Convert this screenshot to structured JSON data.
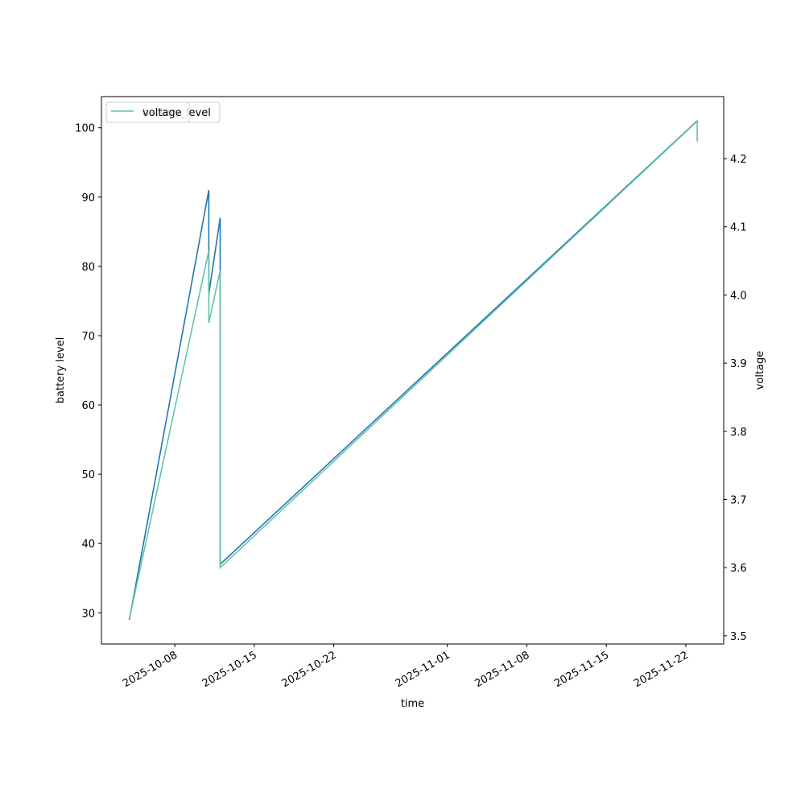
{
  "chart_data": {
    "type": "line",
    "x": [
      "2025-10-04",
      "2025-10-11",
      "2025-10-11",
      "2025-10-12",
      "2025-10-12",
      "2025-11-23",
      "2025-11-23"
    ],
    "xlabel": "time",
    "ylabel": "battery level",
    "y2label": "voltage",
    "xlim": [
      "2025-10-01T13:00",
      "2025-11-25T08:00"
    ],
    "xticks": [
      "2025-10-08",
      "2025-10-15",
      "2025-10-22",
      "2025-11-01",
      "2025-11-08",
      "2025-11-15",
      "2025-11-22"
    ],
    "ylim": [
      25.5,
      104.5
    ],
    "yticks": [
      30,
      40,
      50,
      60,
      70,
      80,
      90,
      100
    ],
    "y2lim": [
      3.488,
      4.291
    ],
    "y2ticks": [
      3.5,
      3.6,
      3.7,
      3.8,
      3.9,
      4.0,
      4.1,
      4.2
    ],
    "series": [
      {
        "name": "battery_level",
        "color": "#1f77b4",
        "values": [
          29,
          91,
          76,
          87,
          37,
          101,
          101
        ]
      },
      {
        "name": "voltage",
        "color": "#66c2a5",
        "axis": "y2",
        "values": [
          3.525,
          4.065,
          3.959,
          4.036,
          3.6,
          4.255,
          4.225
        ]
      }
    ],
    "legend": "upper left"
  }
}
